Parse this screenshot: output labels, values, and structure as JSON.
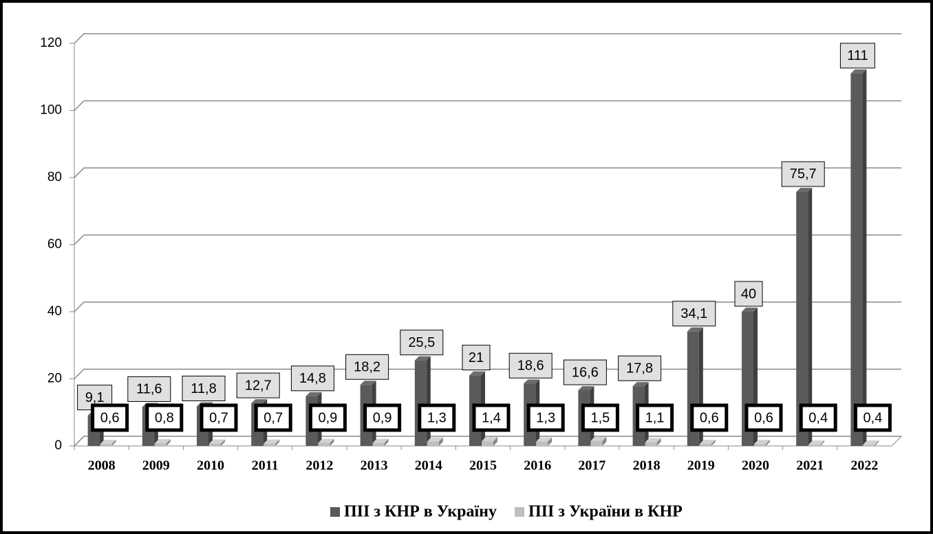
{
  "chart_data": {
    "type": "bar3d",
    "categories": [
      "2008",
      "2009",
      "2010",
      "2011",
      "2012",
      "2013",
      "2014",
      "2015",
      "2016",
      "2017",
      "2018",
      "2019",
      "2020",
      "2021",
      "2022"
    ],
    "series": [
      {
        "name": "ПІІ з КНР в Україну",
        "color": "#5a5a5a",
        "values": [
          9.1,
          11.6,
          11.8,
          12.7,
          14.8,
          18.2,
          25.5,
          21,
          18.6,
          16.6,
          17.8,
          34.1,
          40,
          75.7,
          111
        ],
        "value_labels": [
          "9,1",
          "11,6",
          "11,8",
          "12,7",
          "14,8",
          "18,2",
          "25,5",
          "21",
          "18,6",
          "16,6",
          "17,8",
          "34,1",
          "40",
          "75,7",
          "111"
        ]
      },
      {
        "name": "ПІІ з України в КНР",
        "color": "#bfbfbf",
        "values": [
          0.6,
          0.8,
          0.7,
          0.7,
          0.9,
          0.9,
          1.3,
          1.4,
          1.3,
          1.5,
          1.1,
          0.6,
          0.6,
          0.4,
          0.4
        ],
        "value_labels": [
          "0,6",
          "0,8",
          "0,7",
          "0,7",
          "0,9",
          "0,9",
          "1,3",
          "1,4",
          "1,3",
          "1,5",
          "1,1",
          "0,6",
          "0,6",
          "0,4",
          "0,4"
        ]
      }
    ],
    "ylim": [
      0,
      120
    ],
    "yticks": [
      0,
      20,
      40,
      60,
      80,
      100,
      120
    ],
    "grid": true,
    "legend": "bottom"
  }
}
